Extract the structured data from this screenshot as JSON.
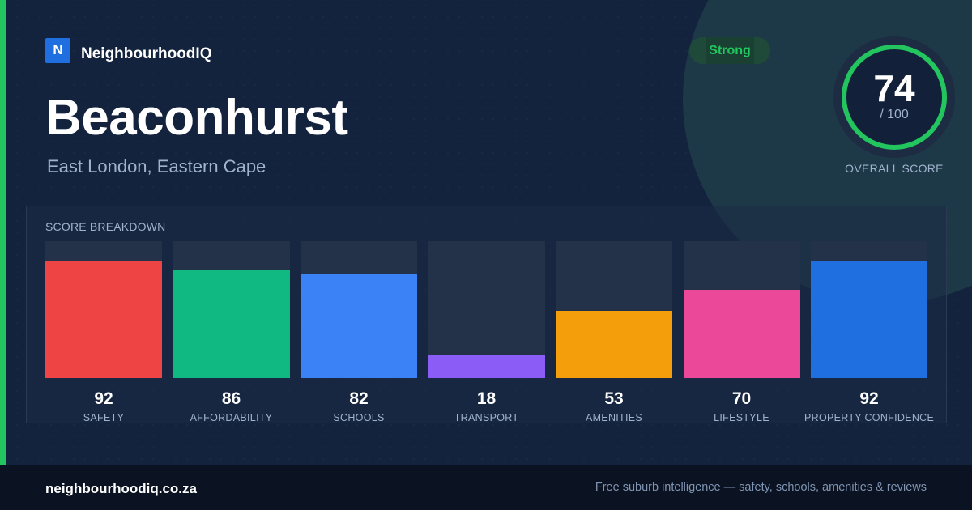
{
  "brand": {
    "logo_letter": "N",
    "name": "NeighbourhoodIQ"
  },
  "suburb": {
    "name": "Beaconhurst",
    "location": "East London, Eastern Cape"
  },
  "badge": {
    "label": "Strong",
    "color": "#22c55e"
  },
  "overall": {
    "score": "74",
    "max_label": "/ 100",
    "label": "OVERALL SCORE",
    "fraction": 0.74,
    "ring_color": "#22c55e"
  },
  "breakdown": {
    "title": "SCORE BREAKDOWN",
    "max": 100,
    "items": [
      {
        "label": "SAFETY",
        "value": 92,
        "color": "#ef4444"
      },
      {
        "label": "AFFORDABILITY",
        "value": 86,
        "color": "#10b981"
      },
      {
        "label": "SCHOOLS",
        "value": 82,
        "color": "#3b82f6"
      },
      {
        "label": "TRANSPORT",
        "value": 18,
        "color": "#8b5cf6"
      },
      {
        "label": "AMENITIES",
        "value": 53,
        "color": "#f59e0b"
      },
      {
        "label": "LIFESTYLE",
        "value": 70,
        "color": "#ec4899"
      },
      {
        "label": "PROPERTY CONFIDENCE",
        "value": 92,
        "color": "#1f6fe0"
      }
    ]
  },
  "footer": {
    "domain": "neighbourhoodiq.co.za",
    "tagline": "Free suburb intelligence — safety, schools, amenities & reviews"
  },
  "chart_data": {
    "type": "bar",
    "categories": [
      "SAFETY",
      "AFFORDABILITY",
      "SCHOOLS",
      "TRANSPORT",
      "AMENITIES",
      "LIFESTYLE",
      "PROPERTY CONFIDENCE"
    ],
    "values": [
      92,
      86,
      82,
      18,
      53,
      70,
      92
    ],
    "title": "SCORE BREAKDOWN",
    "xlabel": "",
    "ylabel": "",
    "ylim": [
      0,
      100
    ],
    "grid": false
  }
}
